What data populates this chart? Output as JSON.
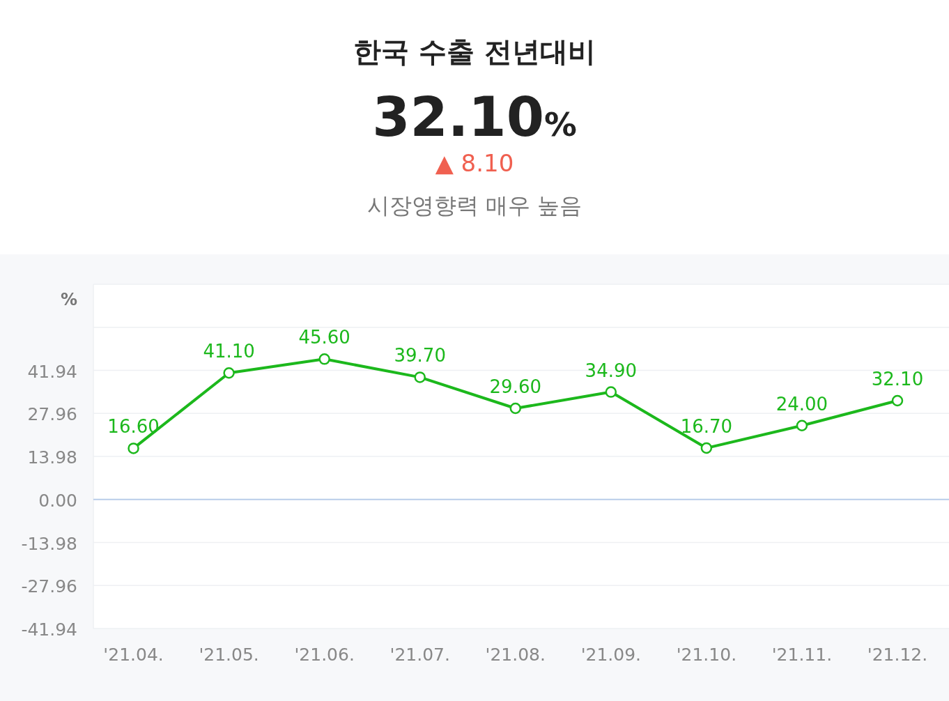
{
  "chart_data": {
    "type": "line",
    "title": "한국 수출 전년대비",
    "annotations": [
      "32.10%",
      "▲ 8.10",
      "시장영향력 매우 높음"
    ],
    "ylabel": "%",
    "categories": [
      "'21.04.",
      "'21.05.",
      "'21.06.",
      "'21.07.",
      "'21.08.",
      "'21.09.",
      "'21.10.",
      "'21.11.",
      "'21.12."
    ],
    "series": [
      {
        "color": "#1cb81c",
        "values": [
          16.6,
          41.1,
          45.6,
          39.7,
          29.6,
          34.9,
          16.7,
          24.0,
          32.1
        ],
        "value_labels": [
          "16.60",
          "41.10",
          "45.60",
          "39.70",
          "29.60",
          "34.90",
          "16.70",
          "24.00",
          "32.10"
        ]
      }
    ],
    "ylim": [
      -41.94,
      69.9
    ],
    "yticks": [
      {
        "value": -41.94,
        "label": "-41.94"
      },
      {
        "value": -27.96,
        "label": "-27.96"
      },
      {
        "value": -13.98,
        "label": "-13.98"
      },
      {
        "value": 0,
        "label": "0.00"
      },
      {
        "value": 13.98,
        "label": "13.98"
      },
      {
        "value": 27.96,
        "label": "27.96"
      },
      {
        "value": 41.94,
        "label": "41.94"
      },
      {
        "value": 55.92,
        "label": null
      },
      {
        "value": 69.9,
        "label": null
      }
    ],
    "ref_lines": [
      {
        "axis": "y",
        "value": 0,
        "color": "#b9cde9"
      }
    ],
    "grid": "y",
    "marker": "circle",
    "line_style": "solid"
  }
}
